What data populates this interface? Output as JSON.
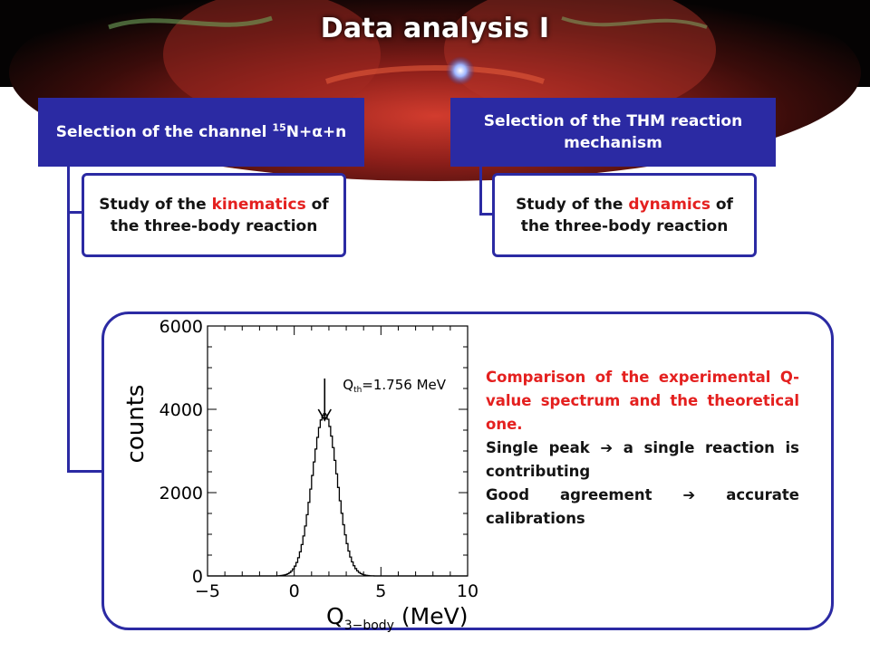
{
  "slide": {
    "title": "Data analysis I"
  },
  "left_branch": {
    "header_pre": "Selection of the channel ",
    "header_sup": "15",
    "header_post": "N+α+n",
    "sub_pre": "Study of the ",
    "sub_highlight": "kinematics",
    "sub_post": " of the three-body reaction"
  },
  "right_branch": {
    "header": "Selection of the THM reaction mechanism",
    "sub_pre": "Study of the ",
    "sub_highlight": "dynamics",
    "sub_post": " of the three-body reaction"
  },
  "description": {
    "comparison": "Comparison of the experimental Q-value spectrum and the theoretical one.",
    "single_peak": "Single peak  a single reaction is contributing",
    "single_peak_lead": "Single peak",
    "single_peak_rest": "a single reaction is contributing",
    "agreement_lead": "Good agreement",
    "agreement_rest": "accurate calibrations",
    "arrow_glyph": "➔"
  },
  "colors": {
    "box_blue": "#2b2aa3",
    "highlight_red": "#e4201f"
  },
  "chart_data": {
    "type": "histogram",
    "ylabel": "counts",
    "xlabel_main": "Q",
    "xlabel_sub": "3−body",
    "xlabel_unit": "(MeV)",
    "xlim": [
      -5,
      10
    ],
    "ylim": [
      0,
      6000
    ],
    "x_ticks": [
      "−5",
      "0",
      "5",
      "10"
    ],
    "y_ticks": [
      "0",
      "2000",
      "4000",
      "6000"
    ],
    "annotation_main": "Q",
    "annotation_sub": "th",
    "annotation_value": "=1.756 MeV",
    "annotation_x": 1.756,
    "peak": {
      "center": 1.756,
      "height": 3900,
      "sigma": 0.72
    }
  }
}
